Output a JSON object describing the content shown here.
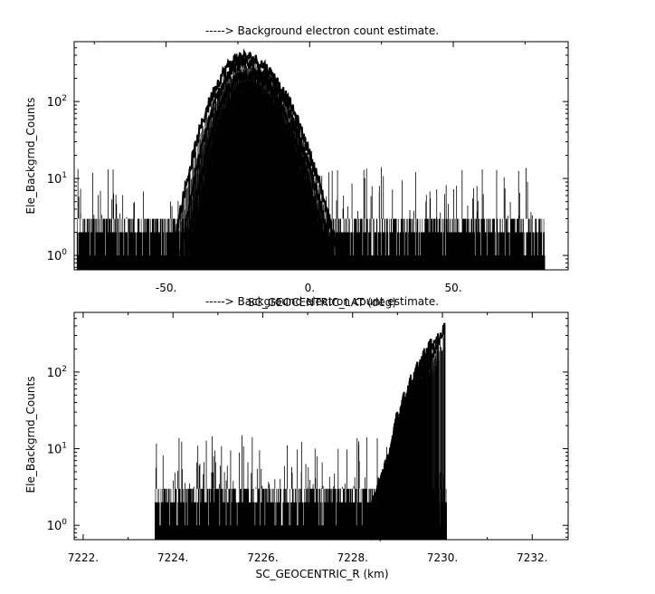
{
  "chart_data": [
    {
      "type": "line",
      "title": "-----> Background electron count estimate.",
      "xlabel": "SC_GEOCENTRIC_LAT (deg)",
      "ylabel": "Ele_Backgrnd_Counts",
      "x_scale": "linear",
      "y_scale": "log",
      "xlim": [
        -82,
        90
      ],
      "ylim": [
        0.65,
        600
      ],
      "x_ticks": [
        -50,
        0,
        50
      ],
      "x_tick_labels": [
        "-50.",
        "0.",
        "50."
      ],
      "y_ticks": [
        1,
        10,
        100
      ],
      "y_tick_labels": [
        "10^0",
        "10^1",
        "10^2"
      ],
      "x_range": [
        -81,
        82
      ],
      "background_level": [
        1,
        3
      ],
      "noise_spikes_max": 15,
      "arcs": [
        {
          "x_start": -48,
          "x_end": 10,
          "peak_x": -23,
          "peak": 380
        },
        {
          "x_start": -45,
          "x_end": 8,
          "peak_x": -23,
          "peak": 310
        },
        {
          "x_start": -43,
          "x_end": 6,
          "peak_x": -22,
          "peak": 230
        },
        {
          "x_start": -41,
          "x_end": 5,
          "peak_x": -22,
          "peak": 160
        },
        {
          "x_start": -39,
          "x_end": 3,
          "peak_x": -21,
          "peak": 105
        },
        {
          "x_start": -37,
          "x_end": 1,
          "peak_x": -21,
          "peak": 70
        },
        {
          "x_start": -35,
          "x_end": -1,
          "peak_x": -20,
          "peak": 45
        },
        {
          "x_start": -33,
          "x_end": -3,
          "peak_x": -20,
          "peak": 30
        },
        {
          "x_start": -31,
          "x_end": -6,
          "peak_x": -19,
          "peak": 20
        },
        {
          "x_start": -29,
          "x_end": -9,
          "peak_x": -19,
          "peak": 12
        }
      ],
      "grid": false,
      "legend": "none"
    },
    {
      "type": "line",
      "title": "-----> Background electron count estimate.",
      "xlabel": "SC_GEOCENTRIC_R (km)",
      "ylabel": "Ele_Backgrnd_Counts",
      "x_scale": "linear",
      "y_scale": "log",
      "xlim": [
        7221.8,
        7232.8
      ],
      "ylim": [
        0.65,
        600
      ],
      "x_ticks": [
        7222,
        7224,
        7226,
        7228,
        7230,
        7232
      ],
      "x_tick_labels": [
        "7222.",
        "7224.",
        "7226.",
        "7228.",
        "7230.",
        "7232."
      ],
      "y_ticks": [
        1,
        10,
        100
      ],
      "y_tick_labels": [
        "10^0",
        "10^1",
        "10^2"
      ],
      "x_range": [
        7223.6,
        7230.1
      ],
      "background_level": [
        1,
        3
      ],
      "noise_spikes_max": 15,
      "rising_curves": [
        {
          "x_start": 7228.3,
          "x_end": 7230.05,
          "peak": 380
        },
        {
          "x_start": 7228.3,
          "x_end": 7229.9,
          "peak": 320
        },
        {
          "x_start": 7228.4,
          "x_end": 7229.75,
          "peak": 250
        },
        {
          "x_start": 7228.4,
          "x_end": 7229.6,
          "peak": 180
        },
        {
          "x_start": 7228.5,
          "x_end": 7229.45,
          "peak": 120
        },
        {
          "x_start": 7228.5,
          "x_end": 7229.3,
          "peak": 80
        },
        {
          "x_start": 7228.6,
          "x_end": 7229.15,
          "peak": 50
        },
        {
          "x_start": 7228.6,
          "x_end": 7229.0,
          "peak": 30
        }
      ],
      "grid": false,
      "legend": "none"
    }
  ]
}
